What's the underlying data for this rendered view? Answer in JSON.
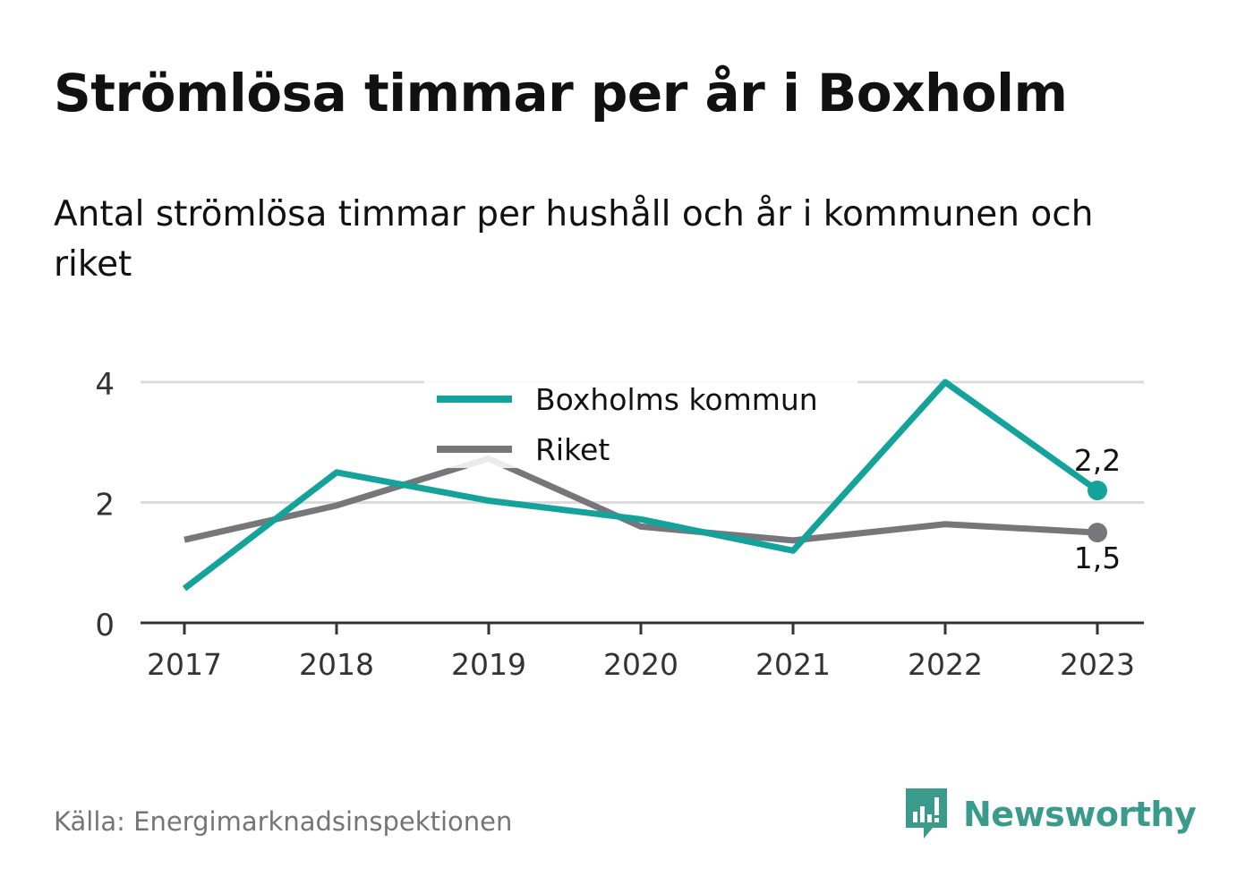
{
  "title": "Strömlösa timmar per år i Boxholm",
  "subtitle": "Antal strömlösa timmar per hushåll och år i kommunen och riket",
  "source": "Källa: Energimarknadsinspektionen",
  "brand": {
    "name": "Newsworthy",
    "icon": "newsworthy-logo-icon"
  },
  "colors": {
    "boxholm": "#14a39a",
    "riket": "#77767b",
    "grid": "#dcdcdc",
    "axis": "#333333",
    "brand": "#3a9a8c"
  },
  "chart_data": {
    "type": "line",
    "title": "Strömlösa timmar per år i Boxholm",
    "subtitle": "Antal strömlösa timmar per hushåll och år i kommunen och riket",
    "xlabel": "",
    "ylabel": "",
    "x": [
      "2017",
      "2018",
      "2019",
      "2020",
      "2021",
      "2022",
      "2023"
    ],
    "ylim": [
      0,
      4
    ],
    "yticks": [
      "0",
      "2",
      "4"
    ],
    "grid": true,
    "legend_position": "top-center",
    "series": [
      {
        "name": "Boxholms kommun",
        "color": "#14a39a",
        "values": [
          0.57,
          2.5,
          2.03,
          1.72,
          1.2,
          4.0,
          2.2
        ],
        "end_label": "2,2"
      },
      {
        "name": "Riket",
        "color": "#77767b",
        "values": [
          1.38,
          1.95,
          2.73,
          1.6,
          1.37,
          1.64,
          1.5
        ],
        "end_label": "1,5"
      }
    ]
  }
}
